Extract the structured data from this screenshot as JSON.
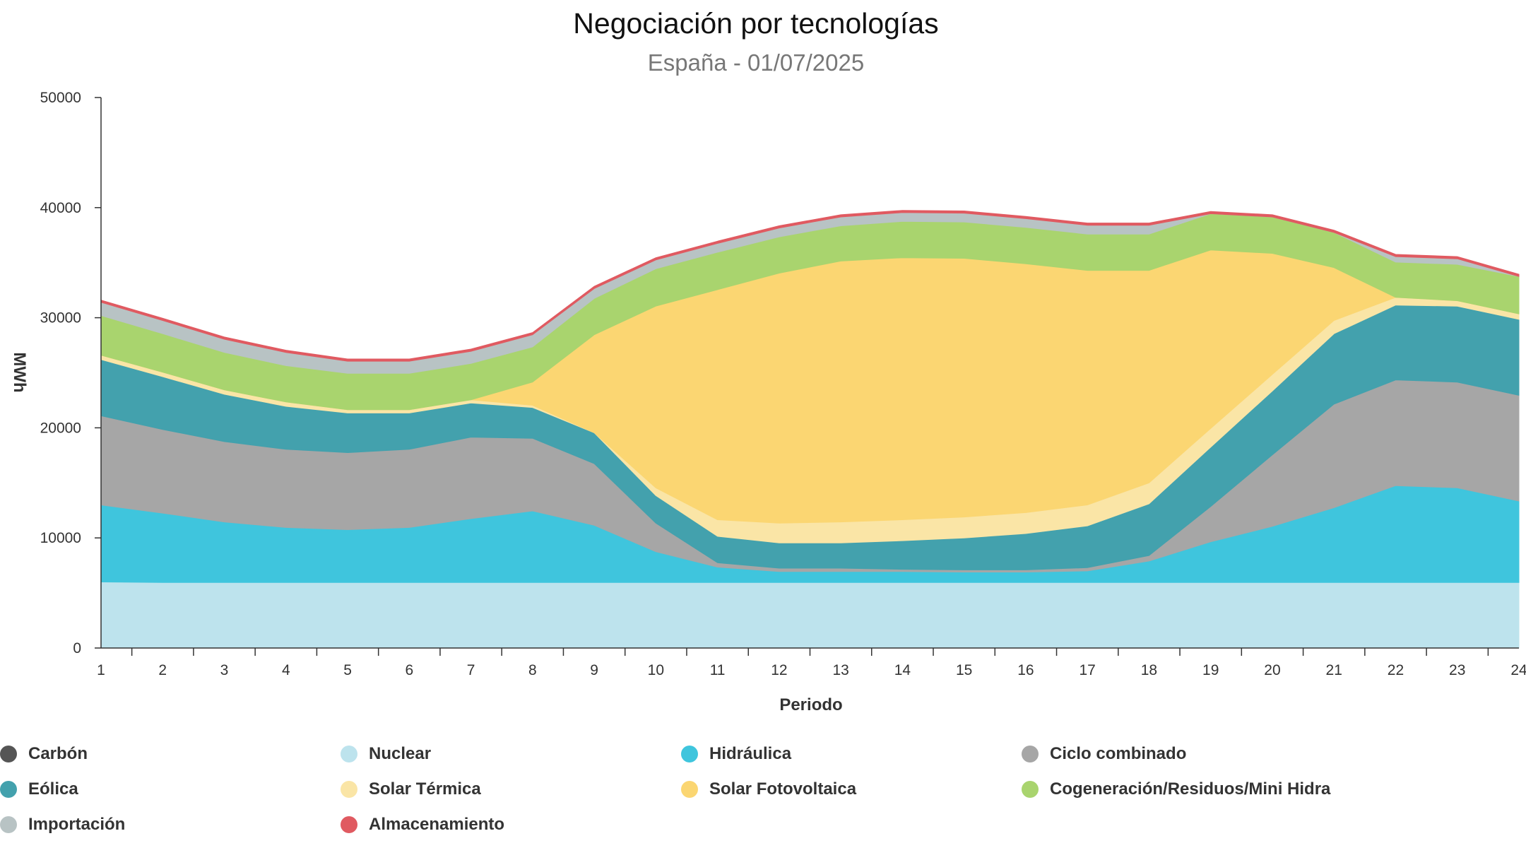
{
  "chart_data": {
    "type": "area",
    "stacked": true,
    "title": "Negociación por tecnologías",
    "subtitle": "España - 01/07/2025",
    "xlabel": "Periodo",
    "ylabel": "MWh",
    "ylim": [
      0,
      50000
    ],
    "yticks": [
      0,
      10000,
      20000,
      30000,
      40000,
      50000
    ],
    "ytick_labels": [
      "0",
      "10000",
      "20000",
      "30000",
      "40000",
      "50000"
    ],
    "categories": [
      "1",
      "2",
      "3",
      "4",
      "5",
      "6",
      "7",
      "8",
      "9",
      "10",
      "11",
      "12",
      "13",
      "14",
      "15",
      "16",
      "17",
      "18",
      "19",
      "20",
      "21",
      "22",
      "23",
      "24"
    ],
    "legend_position": "bottom",
    "grid": false,
    "series": [
      {
        "name": "Carbón",
        "color": "#555555",
        "values": [
          0,
          0,
          0,
          0,
          0,
          0,
          0,
          0,
          0,
          0,
          0,
          0,
          0,
          0,
          0,
          0,
          0,
          0,
          0,
          0,
          0,
          0,
          0,
          0
        ]
      },
      {
        "name": "Nuclear",
        "color": "#bde3ed",
        "values": [
          6000,
          5950,
          5950,
          5950,
          5950,
          5950,
          5950,
          5950,
          5950,
          5950,
          5950,
          5950,
          5950,
          5950,
          5950,
          5950,
          5950,
          5950,
          5950,
          5950,
          5950,
          5950,
          5950,
          5950
        ]
      },
      {
        "name": "Hidráulica",
        "color": "#3fc5dd",
        "values": [
          7000,
          6300,
          5500,
          5000,
          4800,
          5000,
          5800,
          6500,
          5200,
          2800,
          1400,
          1000,
          1000,
          1000,
          950,
          950,
          1050,
          1950,
          3700,
          5100,
          6800,
          8800,
          8600,
          7400
        ]
      },
      {
        "name": "Ciclo combinado",
        "color": "#a6a6a6",
        "values": [
          8100,
          7600,
          7300,
          7100,
          7000,
          7100,
          7400,
          6600,
          5600,
          2600,
          400,
          300,
          300,
          200,
          200,
          200,
          300,
          500,
          3200,
          6500,
          9400,
          9600,
          9600,
          9600
        ]
      },
      {
        "name": "Eólica",
        "color": "#43a1ad",
        "values": [
          5100,
          4800,
          4300,
          3900,
          3600,
          3300,
          3100,
          2800,
          2800,
          2500,
          2400,
          2300,
          2300,
          2600,
          2900,
          3300,
          3800,
          4700,
          5400,
          5800,
          6400,
          6800,
          6900,
          6900
        ]
      },
      {
        "name": "Solar Térmica",
        "color": "#fae5a6",
        "values": [
          400,
          400,
          400,
          400,
          300,
          300,
          300,
          200,
          0,
          700,
          1500,
          1800,
          1900,
          1900,
          1900,
          1900,
          1900,
          1900,
          1700,
          1500,
          1200,
          700,
          500,
          500
        ]
      },
      {
        "name": "Solar Fotovoltaica",
        "color": "#fbd672",
        "values": [
          0,
          0,
          0,
          0,
          0,
          0,
          0,
          2100,
          8900,
          16500,
          20900,
          22700,
          23700,
          23800,
          23500,
          22600,
          21300,
          19300,
          16200,
          11000,
          4800,
          0,
          0,
          0
        ]
      },
      {
        "name": "Cogeneración/Residuos/Mini Hidra",
        "color": "#a9d46e",
        "values": [
          3600,
          3500,
          3400,
          3300,
          3300,
          3300,
          3300,
          3200,
          3300,
          3400,
          3400,
          3300,
          3200,
          3300,
          3300,
          3300,
          3300,
          3300,
          3300,
          3300,
          3200,
          3200,
          3300,
          3400
        ]
      },
      {
        "name": "Importación",
        "color": "#b8c3c4",
        "values": [
          1200,
          1200,
          1200,
          1200,
          1100,
          1100,
          1100,
          1100,
          900,
          800,
          800,
          800,
          800,
          800,
          800,
          800,
          800,
          800,
          0,
          0,
          0,
          500,
          500,
          0
        ]
      },
      {
        "name": "Almacenamiento",
        "color": "#e05a61",
        "values": [
          200,
          200,
          200,
          200,
          200,
          200,
          200,
          200,
          200,
          200,
          200,
          200,
          200,
          200,
          200,
          200,
          200,
          200,
          200,
          200,
          200,
          200,
          200,
          200
        ]
      }
    ]
  }
}
